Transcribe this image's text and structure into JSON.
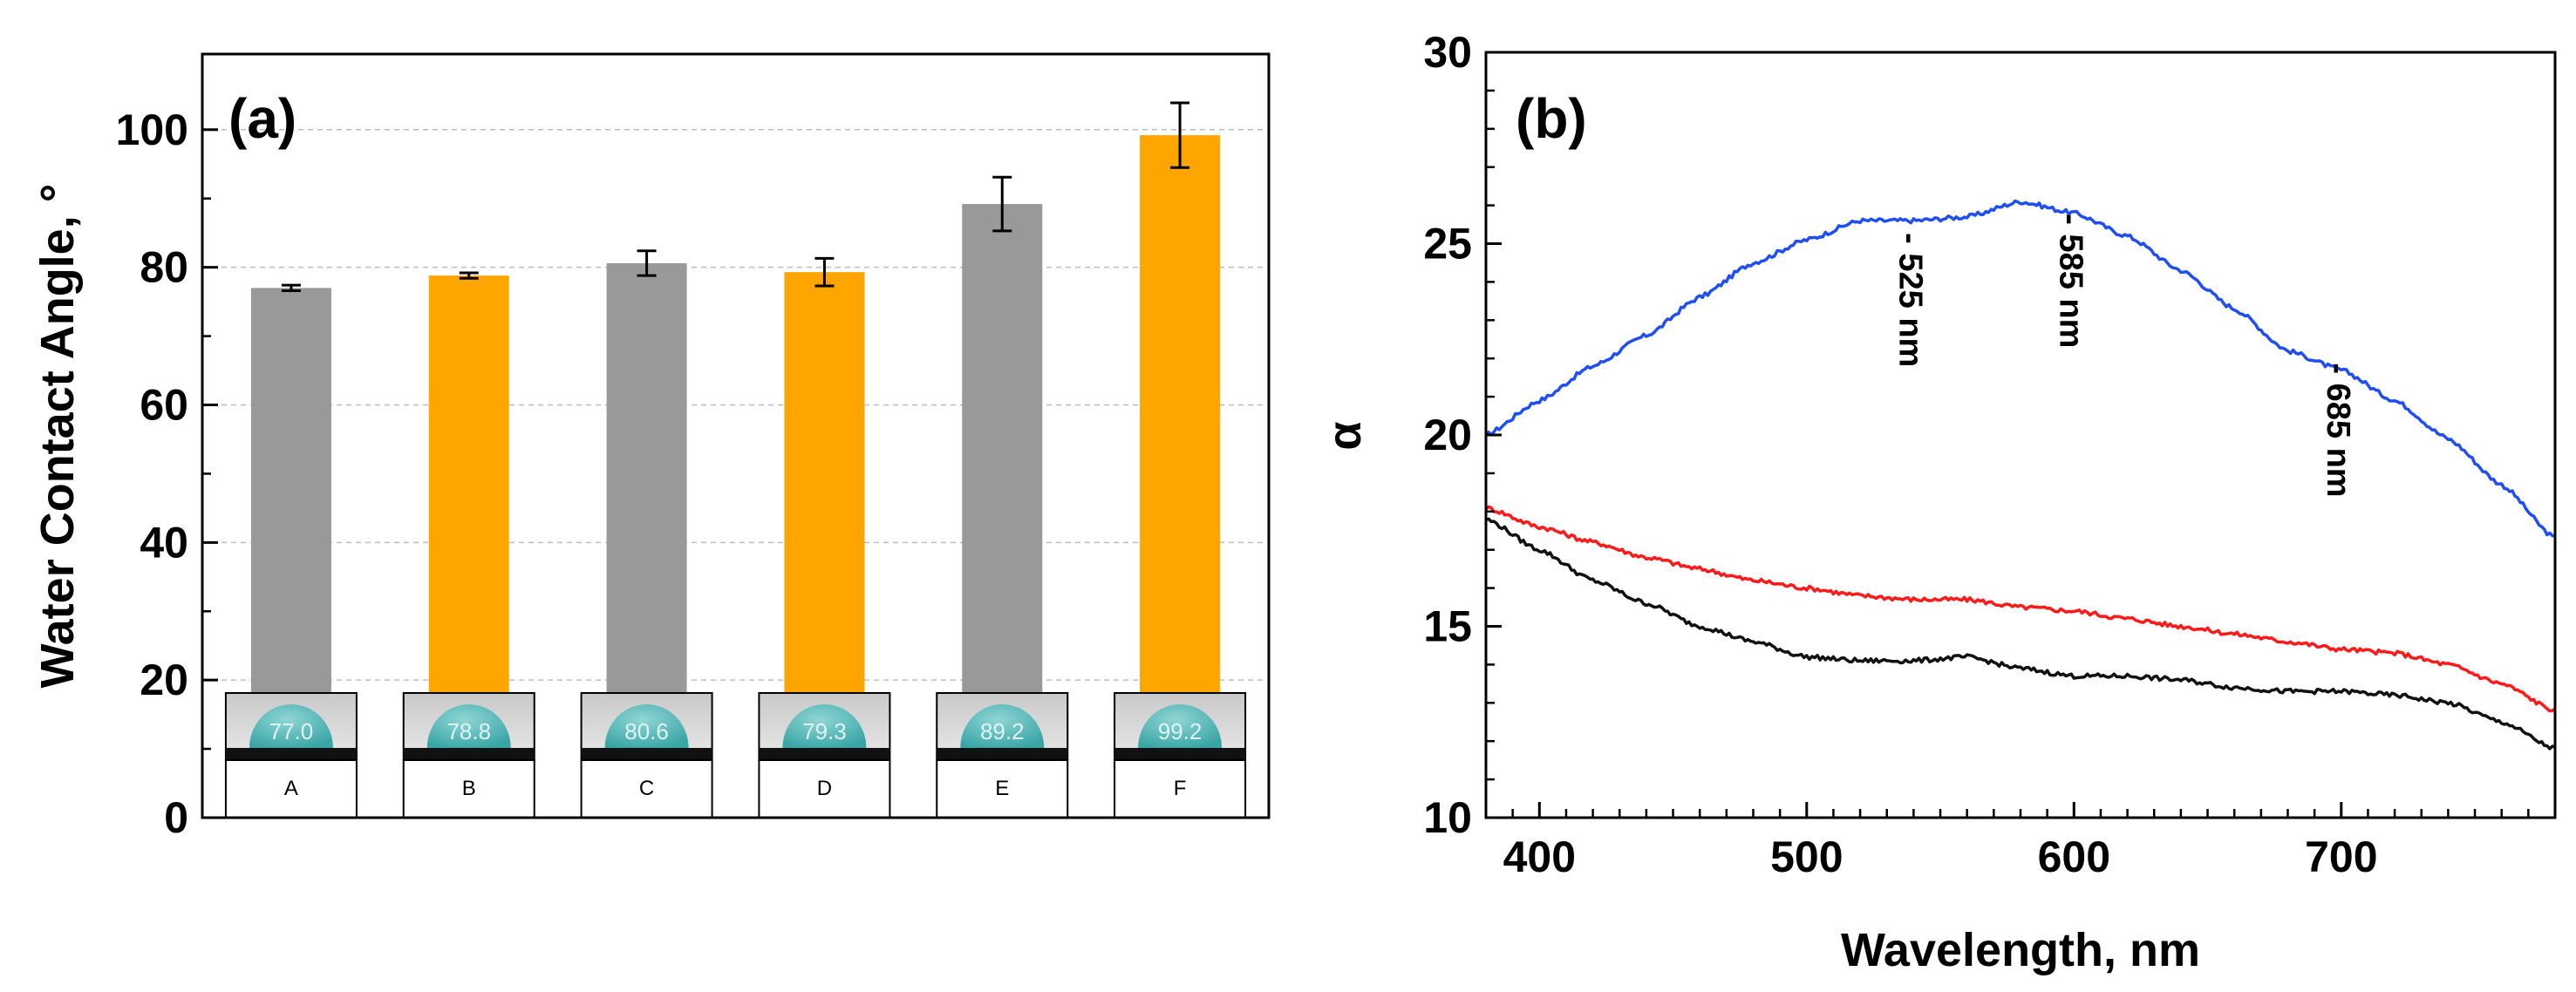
{
  "chart_data": [
    {
      "type": "bar",
      "panel_label": "(a)",
      "title": "",
      "xlabel": "",
      "ylabel": "Water Contact Angle, °",
      "ylim": [
        0,
        111
      ],
      "yticks": [
        "0",
        "20",
        "40",
        "60",
        "80",
        "100"
      ],
      "grid": "horizontal dashed",
      "categories": [
        "A",
        "B",
        "C",
        "D",
        "E",
        "F"
      ],
      "values": [
        77.0,
        78.8,
        80.6,
        79.3,
        89.2,
        99.2
      ],
      "errors": [
        0.4,
        0.4,
        1.8,
        2.0,
        3.9,
        4.7
      ],
      "bar_colors": [
        "#999999",
        "#ffa500",
        "#999999",
        "#ffa500",
        "#999999",
        "#ffa500"
      ],
      "inset_values": [
        "77.0",
        "78.8",
        "80.6",
        "79.3",
        "89.2",
        "99.2"
      ]
    },
    {
      "type": "line",
      "panel_label": "(b)",
      "title": "",
      "xlabel": "Wavelength, nm",
      "ylabel": "α",
      "xlim": [
        380,
        780
      ],
      "ylim": [
        10,
        30
      ],
      "xticks": [
        "400",
        "500",
        "600",
        "700"
      ],
      "yticks": [
        "10",
        "15",
        "20",
        "25",
        "30"
      ],
      "x": [
        380,
        400,
        420,
        440,
        460,
        480,
        500,
        520,
        540,
        560,
        580,
        600,
        620,
        640,
        660,
        680,
        700,
        720,
        740,
        760,
        780
      ],
      "series": [
        {
          "name": "blue",
          "color": "#1f4ef5",
          "values": [
            20.0,
            20.9,
            21.8,
            22.6,
            23.6,
            24.5,
            25.1,
            25.6,
            25.6,
            25.7,
            26.1,
            25.8,
            25.2,
            24.3,
            23.3,
            22.2,
            21.7,
            20.9,
            19.9,
            18.7,
            17.3
          ]
        },
        {
          "name": "red",
          "color": "#ff1a1a",
          "values": [
            18.1,
            17.6,
            17.2,
            16.8,
            16.5,
            16.2,
            16.0,
            15.8,
            15.7,
            15.7,
            15.5,
            15.4,
            15.2,
            15.0,
            14.8,
            14.6,
            14.4,
            14.3,
            14.0,
            13.5,
            12.8
          ]
        },
        {
          "name": "black",
          "color": "#111111",
          "values": [
            17.8,
            17.0,
            16.2,
            15.6,
            15.0,
            14.6,
            14.2,
            14.1,
            14.1,
            14.2,
            13.9,
            13.7,
            13.7,
            13.6,
            13.4,
            13.3,
            13.3,
            13.2,
            13.0,
            12.5,
            11.8
          ]
        }
      ],
      "annotations": [
        {
          "text": "- 525 nm",
          "x": 525,
          "y": 25.6
        },
        {
          "text": "- 585 nm",
          "x": 585,
          "y": 26.1
        },
        {
          "text": "- 685 nm",
          "x": 685,
          "y": 22.2
        }
      ]
    }
  ]
}
